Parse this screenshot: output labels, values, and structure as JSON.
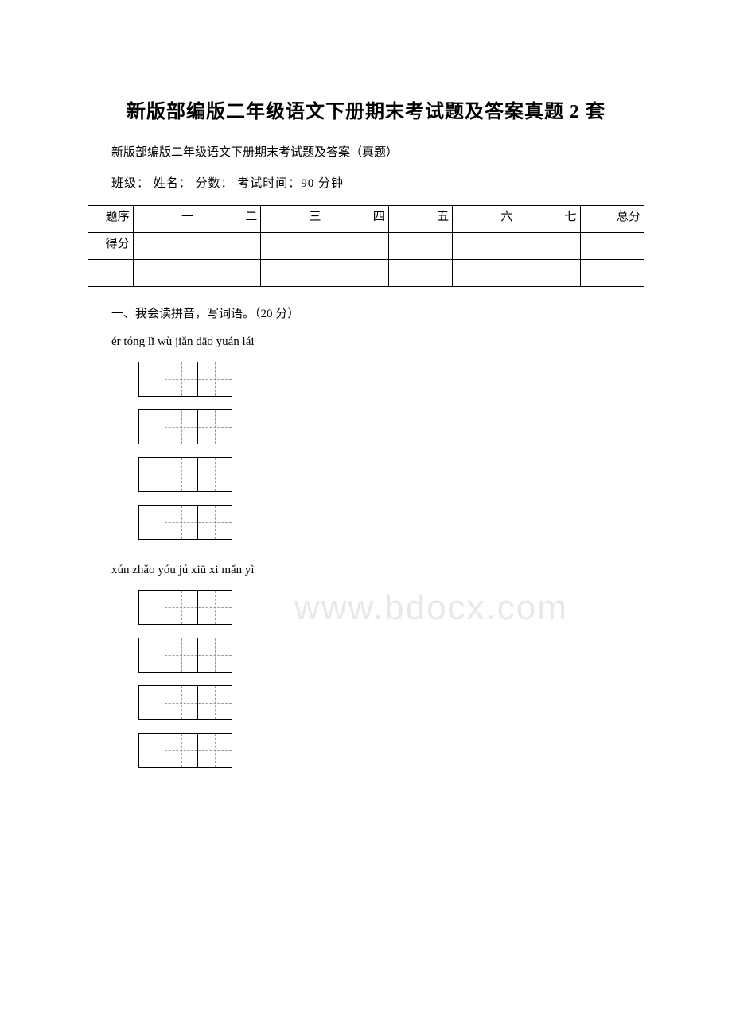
{
  "title": "新版部编版二年级语文下册期末考试题及答案真题 2 套",
  "subtitle": "新版部编版二年级语文下册期末考试题及答案（真题）",
  "form_line": "班级：  姓名：  分数：   考试时间：90 分钟",
  "score_table": {
    "row1_label": "题序",
    "row2_label": "得分",
    "cols": [
      "一",
      "二",
      "三",
      "四",
      "五",
      "六",
      "七",
      "总分"
    ]
  },
  "section1": {
    "heading": "一、我会读拼音，写词语。（20 分）",
    "pinyin_line1": "ér tóng   lǐ wù   jiǎn dāo   yuán lái",
    "pinyin_line2": "xún zhǎo   yóu jú   xiū xi  mǎn yì"
  },
  "watermark": "www.bdocx.com",
  "colors": {
    "text": "#000000",
    "background": "#ffffff",
    "watermark": "#e8e8e8",
    "dash": "#999999"
  }
}
